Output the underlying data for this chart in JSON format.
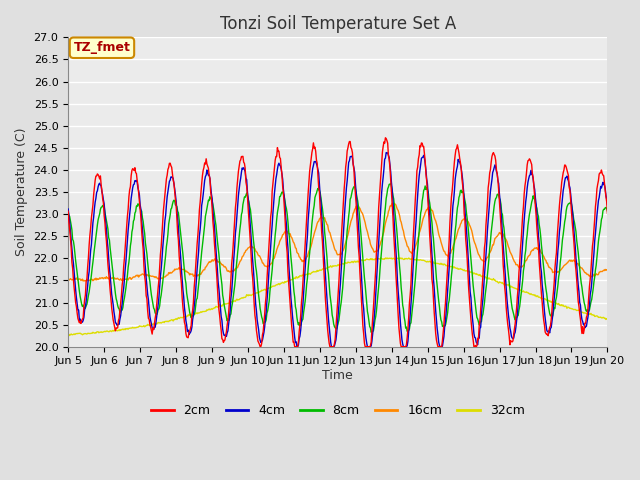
{
  "title": "Tonzi Soil Temperature Set A",
  "xlabel": "Time",
  "ylabel": "Soil Temperature (C)",
  "ylim": [
    20.0,
    27.0
  ],
  "yticks": [
    20.0,
    20.5,
    21.0,
    21.5,
    22.0,
    22.5,
    23.0,
    23.5,
    24.0,
    24.5,
    25.0,
    25.5,
    26.0,
    26.5,
    27.0
  ],
  "xtick_labels": [
    "Jun 5",
    "Jun 6",
    "Jun 7",
    "Jun 8",
    "Jun 9",
    "Jun 10",
    "Jun 11",
    "Jun 12",
    "Jun 13",
    "Jun 14",
    "Jun 15",
    "Jun 16",
    "Jun 17",
    "Jun 18",
    "Jun 19",
    "Jun 20"
  ],
  "series_colors": [
    "#ff0000",
    "#0000cc",
    "#00bb00",
    "#ff8800",
    "#dddd00"
  ],
  "series_labels": [
    "2cm",
    "4cm",
    "8cm",
    "16cm",
    "32cm"
  ],
  "annotation_text": "TZ_fmet",
  "annotation_color": "#aa0000",
  "annotation_bg": "#ffffcc",
  "annotation_border": "#cc8800",
  "fig_bg_color": "#e0e0e0",
  "plot_bg_color": "#ebebeb",
  "grid_color": "#ffffff",
  "title_fontsize": 12,
  "label_fontsize": 9,
  "tick_fontsize": 8,
  "legend_fontsize": 9
}
